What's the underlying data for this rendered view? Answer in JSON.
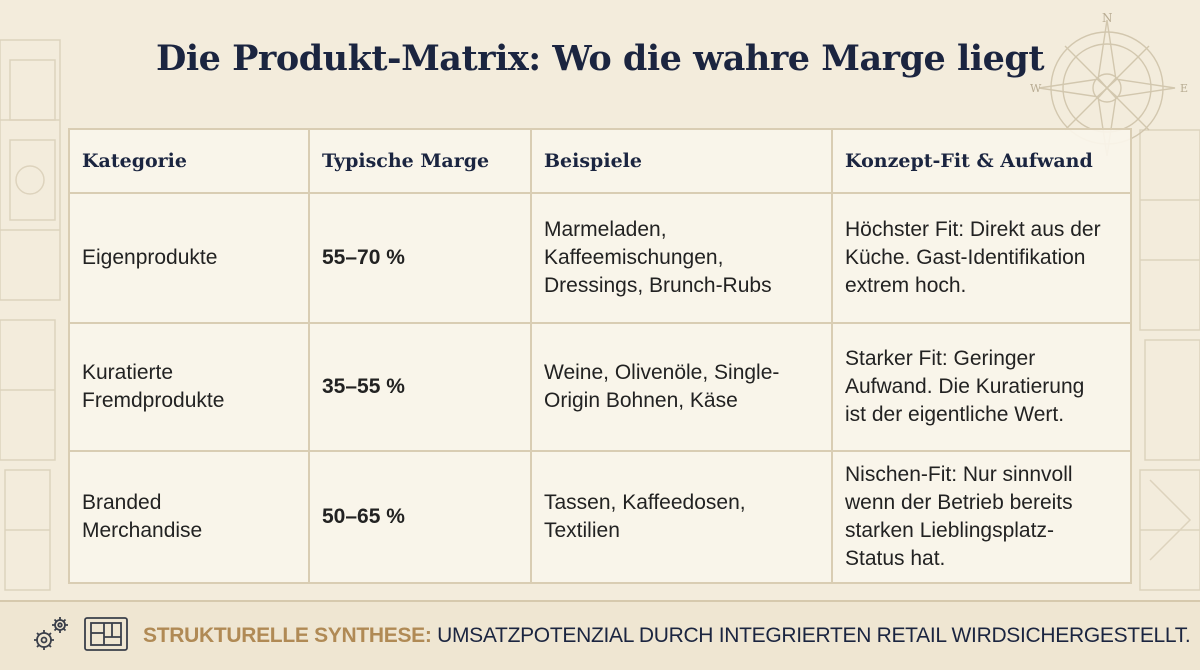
{
  "page": {
    "title": "Die Produkt-Matrix: Wo die wahre Marge liegt"
  },
  "decor": {
    "compass_north": "N",
    "compass_west": "W",
    "compass_east": "E"
  },
  "table": {
    "headers": [
      "Kategorie",
      "Typische Marge",
      "Beispiele",
      "Konzept-Fit & Aufwand"
    ],
    "rows": [
      {
        "category": [
          "Eigenprodukte"
        ],
        "margin": "55–70 %",
        "examples": [
          "Marmeladen,",
          "Kaffeemischungen,",
          "Dressings, Brunch-Rubs"
        ],
        "fit": [
          "Höchster Fit: Direkt aus der",
          "Küche. Gast-Identifikation",
          "extrem hoch."
        ]
      },
      {
        "category": [
          "Kuratierte",
          "Fremdprodukte"
        ],
        "margin": "35–55 %",
        "examples": [
          "Weine, Olivenöle, Single-",
          "Origin Bohnen, Käse"
        ],
        "fit": [
          "Starker Fit: Geringer",
          "Aufwand. Die Kuratierung",
          "ist der eigentliche Wert."
        ]
      },
      {
        "category": [
          "Branded",
          "Merchandise"
        ],
        "margin": "50–65 %",
        "examples": [
          "Tassen, Kaffeedosen,",
          "Textilien"
        ],
        "fit": [
          "Nischen-Fit: Nur sinnvoll",
          "wenn der Betrieb bereits",
          "starken Lieblingsplatz-",
          "Status hat."
        ]
      }
    ]
  },
  "footer": {
    "label": "STRUKTURELLE SYNTHESE:",
    "text": " UMSATZPOTENZIAL DURCH INTEGRIERTEN RETAIL WIRDSICHERGESTELLT.",
    "icons": [
      "gears-icon",
      "blueprint-icon"
    ]
  },
  "colors": {
    "background": "#f3ecdc",
    "title": "#1b2540",
    "accent_gold": "#b08a55",
    "grid": "#d9cdb3"
  }
}
